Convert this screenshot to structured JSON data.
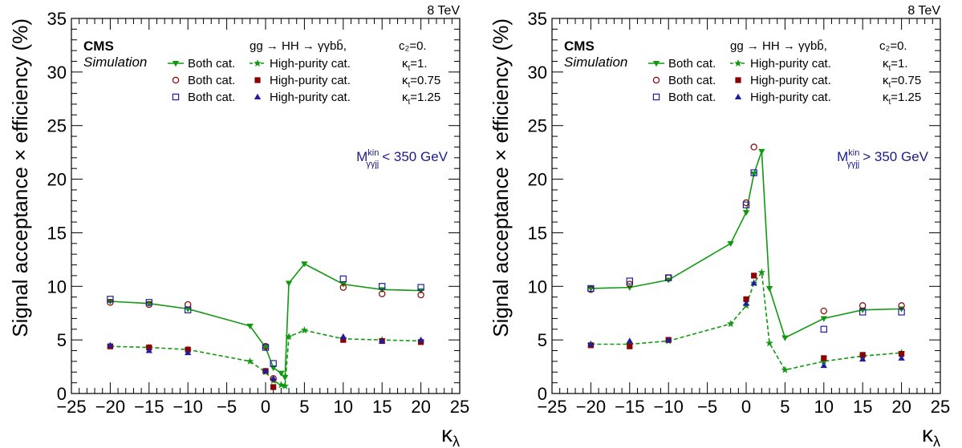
{
  "chart_data": [
    {
      "type": "scatter",
      "energy_label": "8 TeV",
      "experiment": "CMS",
      "sublabel": "Simulation",
      "process": "gg → HH → γγbb̄,",
      "process_coupling": "c₂=0.",
      "region_label": "M",
      "region_sup": "kin",
      "region_sub": "γγjj",
      "region_cut": "< 350 GeV",
      "xlabel": "κλ",
      "xlabel_main": "κ",
      "xlabel_sub": "λ",
      "ylabel": "Signal acceptance × efficiency (%)",
      "xlim": [
        -25,
        25
      ],
      "ylim": [
        0,
        35
      ],
      "xticks": [
        -25,
        -20,
        -15,
        -10,
        -5,
        0,
        5,
        10,
        15,
        20,
        25
      ],
      "yticks": [
        0,
        5,
        10,
        15,
        20,
        25,
        30,
        35
      ],
      "legend_position": "top-right",
      "legend": [
        {
          "series": 0,
          "label": "Both cat.",
          "kt": "κt=1."
        },
        {
          "series": 1,
          "label": "High-purity cat.",
          "kt": ""
        },
        {
          "series": 2,
          "label": "Both cat.",
          "kt": "κt=0.75"
        },
        {
          "series": 3,
          "label": "High-purity cat.",
          "kt": ""
        },
        {
          "series": 4,
          "label": "Both cat.",
          "kt": "κt=1.25"
        },
        {
          "series": 5,
          "label": "High-purity cat.",
          "kt": ""
        }
      ],
      "series": [
        {
          "name": "Both cat. κt=1.",
          "color": "#109910",
          "marker": "triangle-down",
          "line": "solid",
          "x": [
            -20,
            -15,
            -10,
            -2,
            0,
            1,
            2,
            2.5,
            3,
            5,
            10,
            15,
            20
          ],
          "y": [
            8.6,
            8.4,
            7.9,
            6.3,
            4.3,
            2.4,
            1.9,
            1.5,
            10.3,
            12.1,
            10.2,
            9.7,
            9.6
          ]
        },
        {
          "name": "High-purity cat. κt=1.",
          "color": "#109910",
          "marker": "star",
          "line": "dashed",
          "x": [
            -20,
            -15,
            -10,
            -2,
            0,
            1,
            2,
            2.5,
            3,
            5,
            10,
            15,
            20
          ],
          "y": [
            4.4,
            4.3,
            4.1,
            3.0,
            2.0,
            1.2,
            0.8,
            0.7,
            5.3,
            5.9,
            5.1,
            5.0,
            4.9
          ]
        },
        {
          "name": "Both cat. κt=0.75",
          "color": "#8b0000",
          "marker": "circle-open",
          "x": [
            -20,
            -15,
            -10,
            0,
            1,
            10,
            15,
            20
          ],
          "y": [
            8.5,
            8.3,
            8.3,
            4.4,
            1.4,
            9.9,
            9.3,
            9.2
          ]
        },
        {
          "name": "High-purity cat. κt=0.75",
          "color": "#8b0000",
          "marker": "square-filled",
          "x": [
            -20,
            -15,
            -10,
            0,
            1,
            10,
            15,
            20
          ],
          "y": [
            4.4,
            4.3,
            4.1,
            2.1,
            0.6,
            5.0,
            4.9,
            4.8
          ]
        },
        {
          "name": "Both cat. κt=1.25",
          "color": "#1f1f9e",
          "marker": "square-open",
          "x": [
            -20,
            -15,
            -10,
            0,
            1,
            10,
            15,
            20
          ],
          "y": [
            8.8,
            8.5,
            7.8,
            4.3,
            2.8,
            10.7,
            10.0,
            9.9
          ]
        },
        {
          "name": "High-purity cat. κt=1.25",
          "color": "#1f1f9e",
          "marker": "triangle-up",
          "x": [
            -20,
            -15,
            -10,
            0,
            1,
            10,
            15,
            20
          ],
          "y": [
            4.5,
            4.0,
            3.8,
            2.1,
            1.4,
            5.3,
            4.9,
            5.0
          ]
        }
      ]
    },
    {
      "type": "scatter",
      "energy_label": "8 TeV",
      "experiment": "CMS",
      "sublabel": "Simulation",
      "process": "gg → HH → γγbb̄,",
      "process_coupling": "c₂=0.",
      "region_label": "M",
      "region_sup": "kin",
      "region_sub": "γγjj",
      "region_cut": "> 350 GeV",
      "xlabel": "κλ",
      "xlabel_main": "κ",
      "xlabel_sub": "λ",
      "ylabel": "Signal acceptance × efficiency (%)",
      "xlim": [
        -25,
        25
      ],
      "ylim": [
        0,
        35
      ],
      "xticks": [
        -25,
        -20,
        -15,
        -10,
        -5,
        0,
        5,
        10,
        15,
        20,
        25
      ],
      "yticks": [
        0,
        5,
        10,
        15,
        20,
        25,
        30,
        35
      ],
      "legend_position": "top-right",
      "legend": [
        {
          "series": 0,
          "label": "Both cat.",
          "kt": "κt=1."
        },
        {
          "series": 1,
          "label": "High-purity cat.",
          "kt": ""
        },
        {
          "series": 2,
          "label": "Both cat.",
          "kt": "κt=0.75"
        },
        {
          "series": 3,
          "label": "High-purity cat.",
          "kt": ""
        },
        {
          "series": 4,
          "label": "Both cat.",
          "kt": "κt=1.25"
        },
        {
          "series": 5,
          "label": "High-purity cat.",
          "kt": ""
        }
      ],
      "series": [
        {
          "name": "Both cat. κt=1.",
          "color": "#109910",
          "marker": "triangle-down",
          "line": "solid",
          "x": [
            -20,
            -15,
            -10,
            -2,
            0,
            1,
            2,
            3,
            5,
            10,
            15,
            20
          ],
          "y": [
            9.8,
            9.9,
            10.6,
            14.0,
            16.9,
            20.5,
            22.6,
            9.8,
            5.2,
            7.0,
            7.8,
            7.9
          ]
        },
        {
          "name": "High-purity cat. κt=1.",
          "color": "#109910",
          "marker": "star",
          "line": "dashed",
          "x": [
            -20,
            -15,
            -10,
            -2,
            0,
            1,
            2,
            3,
            5,
            10,
            15,
            20
          ],
          "y": [
            4.6,
            4.6,
            4.9,
            6.5,
            8.2,
            10.3,
            11.3,
            4.7,
            2.2,
            3.0,
            3.5,
            3.8
          ]
        },
        {
          "name": "Both cat. κt=0.75",
          "color": "#8b0000",
          "marker": "circle-open",
          "x": [
            -20,
            -15,
            -10,
            0,
            1,
            10,
            15,
            20
          ],
          "y": [
            9.7,
            10.2,
            10.8,
            17.8,
            23.0,
            7.7,
            8.2,
            8.2
          ]
        },
        {
          "name": "High-purity cat. κt=0.75",
          "color": "#8b0000",
          "marker": "square-filled",
          "x": [
            -20,
            -15,
            -10,
            0,
            1,
            10,
            15,
            20
          ],
          "y": [
            4.5,
            4.4,
            5.0,
            8.8,
            11.0,
            3.3,
            3.6,
            3.7
          ]
        },
        {
          "name": "Both cat. κt=1.25",
          "color": "#1f1f9e",
          "marker": "square-open",
          "x": [
            -20,
            -15,
            -10,
            0,
            1,
            10,
            15,
            20
          ],
          "y": [
            9.8,
            10.5,
            10.8,
            17.6,
            20.6,
            6.0,
            7.6,
            7.6
          ]
        },
        {
          "name": "High-purity cat. κt=1.25",
          "color": "#1f1f9e",
          "marker": "triangle-up",
          "x": [
            -20,
            -15,
            -10,
            0,
            1,
            10,
            15,
            20
          ],
          "y": [
            4.6,
            4.9,
            5.0,
            8.4,
            10.3,
            2.6,
            3.2,
            3.3
          ]
        }
      ]
    }
  ]
}
